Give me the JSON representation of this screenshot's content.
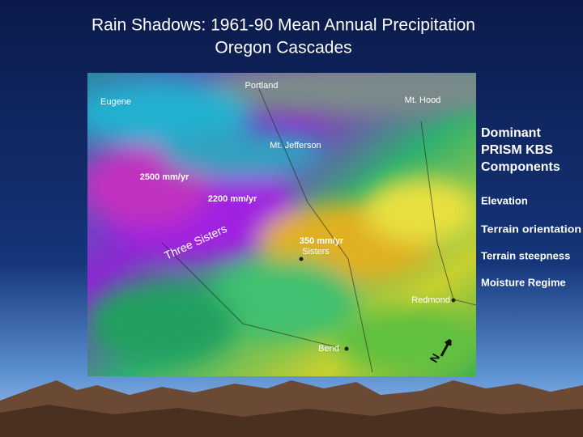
{
  "title": [
    "Rain Shadows: 1961-90 Mean Annual Precipitation",
    "Oregon Cascades"
  ],
  "map": {
    "labels": [
      "Portland",
      "Eugene",
      "Mt. Hood",
      "Mt. Jefferson",
      "2500 mm/yr",
      "2200 mm/yr",
      "Three Sisters",
      "350 mm/yr",
      "Sisters",
      "Redmond",
      "Bend",
      "N"
    ]
  },
  "panel": {
    "heading": [
      "Dominant",
      "PRISM KBS",
      "Components"
    ],
    "items": [
      "Elevation",
      "Terrain orientation",
      "Terrain steepness",
      "Moisture Regime"
    ]
  }
}
